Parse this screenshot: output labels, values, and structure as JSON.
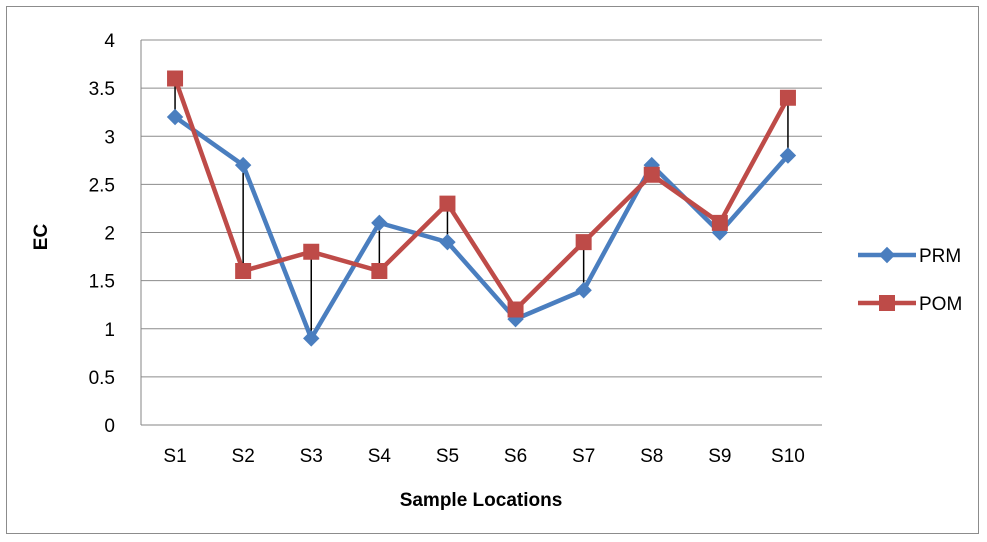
{
  "chart_data": {
    "type": "line",
    "title": "",
    "xlabel": "Sample Locations",
    "ylabel": "EC",
    "ylim": [
      0,
      4
    ],
    "ytick_step": 0.5,
    "yticks": [
      "0",
      "0.5",
      "1",
      "1.5",
      "2",
      "2.5",
      "3",
      "3.5",
      "4"
    ],
    "grid": "horizontal",
    "legend_position": "right",
    "hi_lo_lines": true,
    "categories": [
      "S1",
      "S2",
      "S3",
      "S4",
      "S5",
      "S6",
      "S7",
      "S8",
      "S9",
      "S10"
    ],
    "series": [
      {
        "name": "PRM",
        "color": "#4a7ebf",
        "marker": "diamond",
        "values": [
          3.2,
          2.7,
          0.9,
          2.1,
          1.9,
          1.1,
          1.4,
          2.7,
          2.0,
          2.8
        ]
      },
      {
        "name": "POM",
        "color": "#be4b48",
        "marker": "square",
        "values": [
          3.6,
          1.6,
          1.8,
          1.6,
          2.3,
          1.2,
          1.9,
          2.6,
          2.1,
          3.4
        ]
      }
    ]
  }
}
